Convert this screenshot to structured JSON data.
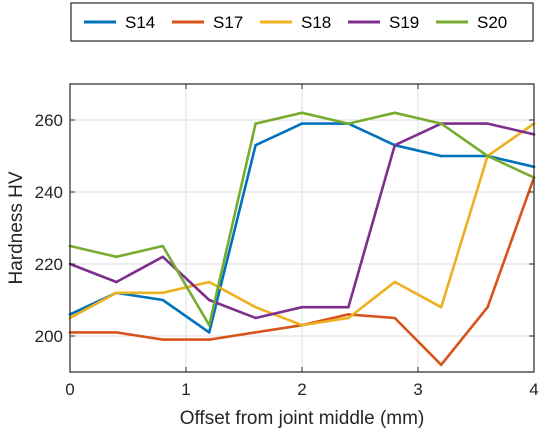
{
  "chart_data": {
    "type": "line",
    "xlabel": "Offset from joint middle (mm)",
    "ylabel": "Hardness HV",
    "xlim": [
      0,
      4
    ],
    "ylim": [
      190,
      270
    ],
    "xticks": [
      0,
      1,
      2,
      3,
      4
    ],
    "yticks": [
      200,
      220,
      240,
      260
    ],
    "xtick_labels": [
      "0",
      "1",
      "2",
      "3",
      "4"
    ],
    "ytick_labels": [
      "200",
      "220",
      "240",
      "260"
    ],
    "grid": true,
    "legend_position": "top, horizontal, outside plot",
    "x": [
      0,
      0.4,
      0.8,
      1.2,
      1.6,
      2.0,
      2.4,
      2.8,
      3.2,
      3.6,
      4.0
    ],
    "series": [
      {
        "name": "S14",
        "color": "#0072BD",
        "values": [
          206,
          212,
          210,
          201,
          253,
          259,
          259,
          253,
          250,
          250,
          247
        ]
      },
      {
        "name": "S17",
        "color": "#D95319",
        "values": [
          201,
          201,
          199,
          199,
          201,
          203,
          206,
          205,
          192,
          208,
          244
        ]
      },
      {
        "name": "S18",
        "color": "#EDB120",
        "values": [
          205,
          212,
          212,
          215,
          208,
          203,
          205,
          215,
          208,
          250,
          259
        ]
      },
      {
        "name": "S19",
        "color": "#7E2F8E",
        "values": [
          220,
          215,
          222,
          210,
          205,
          208,
          208,
          253,
          259,
          259,
          256
        ]
      },
      {
        "name": "S20",
        "color": "#77AC30",
        "values": [
          225,
          222,
          225,
          203,
          259,
          262,
          259,
          262,
          259,
          250,
          244
        ]
      }
    ]
  }
}
